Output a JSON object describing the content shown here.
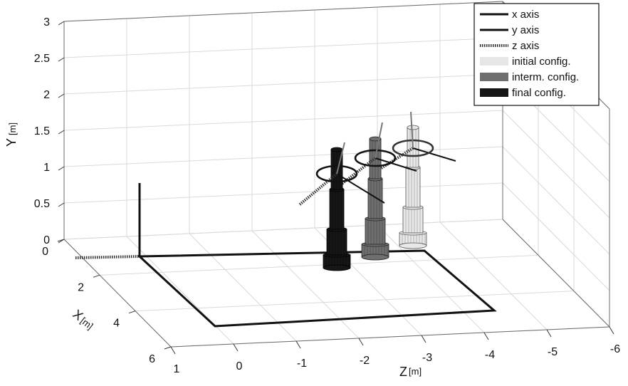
{
  "chart_data": {
    "type": "3d-line",
    "title": "",
    "axes": {
      "y": {
        "label_main": "Y",
        "label_unit": "[m]",
        "ticks": [
          "0",
          "0.5",
          "1",
          "1.5",
          "2",
          "2.5",
          "3"
        ],
        "range": [
          0,
          3
        ]
      },
      "x": {
        "label_main": "X",
        "label_unit": "[m]",
        "ticks": [
          "0",
          "2",
          "4",
          "6"
        ],
        "range": [
          0,
          6
        ]
      },
      "z": {
        "label_main": "Z",
        "label_unit": "[m]",
        "ticks": [
          "1",
          "0",
          "-1",
          "-2",
          "-3",
          "-4",
          "-5",
          "-6"
        ],
        "range": [
          1,
          -6
        ]
      }
    },
    "grid": true,
    "legend_position": "top-right",
    "legend": [
      {
        "label": "x axis",
        "style": "solid",
        "color": "#111111"
      },
      {
        "label": "y axis",
        "style": "solid",
        "color": "#111111"
      },
      {
        "label": "z axis",
        "style": "dotted",
        "color": "#333333"
      },
      {
        "label": "initial config.",
        "style": "patch",
        "color": "#e6e6e6"
      },
      {
        "label": "interm. config.",
        "style": "patch",
        "color": "#6f6f6f"
      },
      {
        "label": "final config.",
        "style": "patch",
        "color": "#161616"
      }
    ],
    "configurations": [
      {
        "name": "initial config.",
        "color": "#e8e8e8",
        "stroke": "#555555"
      },
      {
        "name": "interm. config.",
        "color": "#6f6f6f",
        "stroke": "#222222"
      },
      {
        "name": "final config.",
        "color": "#161616",
        "stroke": "#000000"
      }
    ]
  }
}
